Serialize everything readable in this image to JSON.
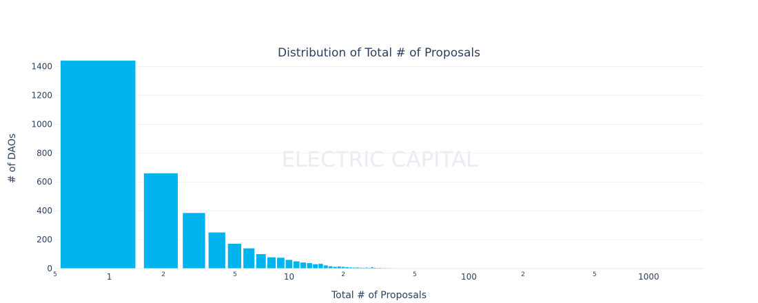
{
  "chart_data": {
    "type": "bar",
    "title": "Distribution of Total # of Proposals",
    "xlabel": "Total # of Proposals",
    "ylabel": "# of DAOs",
    "x_scale": "log",
    "xlim": [
      0.5,
      2000
    ],
    "ylim": [
      0,
      1450
    ],
    "grid": true,
    "watermark": "ELECTRIC CAPITAL",
    "bar_color": "#00b5ee",
    "y_ticks": [
      0,
      200,
      400,
      600,
      800,
      1000,
      1200,
      1400
    ],
    "x_major_ticks": [
      {
        "value": 1,
        "label": "1"
      },
      {
        "value": 10,
        "label": "10"
      },
      {
        "value": 100,
        "label": "100"
      },
      {
        "value": 1000,
        "label": "1000"
      }
    ],
    "x_minor_ticks": [
      {
        "value": 0.5,
        "label": "5"
      },
      {
        "value": 2,
        "label": "2"
      },
      {
        "value": 5,
        "label": "5"
      },
      {
        "value": 20,
        "label": "2"
      },
      {
        "value": 50,
        "label": "5"
      },
      {
        "value": 200,
        "label": "2"
      },
      {
        "value": 500,
        "label": "5"
      }
    ],
    "x": [
      1,
      2,
      3,
      4,
      5,
      6,
      7,
      8,
      9,
      10,
      11,
      12,
      13,
      14,
      15,
      16,
      17,
      18,
      19,
      20,
      21,
      22,
      23,
      24,
      25,
      26,
      27,
      28,
      29,
      30,
      31,
      32,
      33,
      34,
      35,
      36,
      37,
      38,
      39,
      40,
      42,
      44,
      46,
      48,
      50,
      55,
      60,
      65,
      70,
      75,
      80,
      90,
      100,
      110,
      120,
      140,
      160,
      180,
      200,
      250,
      300,
      350,
      400,
      500,
      600,
      700,
      800
    ],
    "values": [
      1440,
      660,
      385,
      250,
      172,
      140,
      100,
      78,
      75,
      60,
      50,
      42,
      38,
      30,
      33,
      22,
      16,
      12,
      14,
      12,
      10,
      8,
      7,
      8,
      6,
      5,
      7,
      5,
      10,
      6,
      4,
      5,
      3,
      4,
      3,
      3,
      3,
      2,
      3,
      2,
      2,
      2,
      2,
      2,
      2,
      1,
      1,
      2,
      1,
      1,
      1,
      1,
      1,
      1,
      1,
      1,
      1,
      1,
      1,
      1,
      1,
      1,
      1,
      1,
      1,
      1,
      1
    ]
  }
}
